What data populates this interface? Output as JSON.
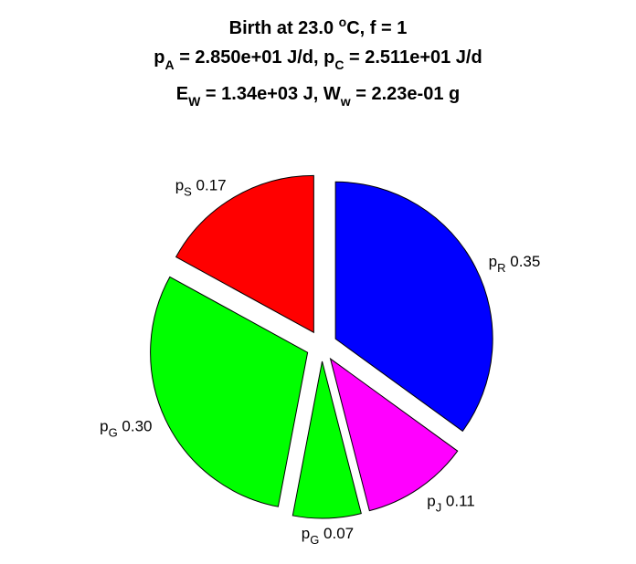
{
  "title": {
    "line1": {
      "prefix": "Birth at 23.0 ",
      "degree": "o",
      "suffix": "C, f = 1"
    },
    "line2": {
      "pA_sym": "p",
      "pA_sub": "A",
      "pA_val": " = 2.850e+01 J/d, ",
      "pC_sym": "p",
      "pC_sub": "C",
      "pC_val": " = 2.511e+01 J/d"
    },
    "line3": {
      "EW_sym": "E",
      "EW_sub": "W",
      "EW_val": " = 1.34e+03 J, ",
      "Ww_sym": "W",
      "Ww_sub": "w",
      "Ww_val": " = 2.23e-01 g"
    }
  },
  "chart_data": {
    "type": "pie",
    "title": "Birth at 23.0 oC, f = 1 | pA = 2.850e+01 J/d, pC = 2.511e+01 J/d | EW = 1.34e+03 J, Ww = 2.23e-01 g",
    "slices": [
      {
        "symbol": "p",
        "sub": "R",
        "value": 0.35,
        "color": "#0000ff",
        "exploded": true
      },
      {
        "symbol": "p",
        "sub": "J",
        "value": 0.11,
        "color": "#ff00ff",
        "exploded": true
      },
      {
        "symbol": "p",
        "sub": "G",
        "value": 0.07,
        "color": "#00ff00",
        "exploded": true
      },
      {
        "symbol": "p",
        "sub": "G",
        "value": 0.3,
        "color": "#00ff00",
        "exploded": true
      },
      {
        "symbol": "p",
        "sub": "S",
        "value": 0.17,
        "color": "#ff0000",
        "exploded": true
      }
    ]
  }
}
